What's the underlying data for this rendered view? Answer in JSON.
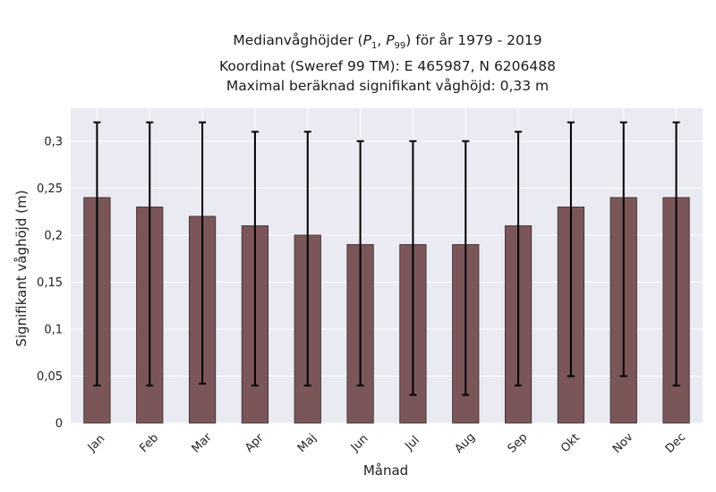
{
  "chart_data": {
    "type": "bar",
    "title_lines": [
      "Medianvåghöjder (P1, P99) för år 1979 - 2019",
      "Koordinat (Sweref 99 TM): E 465987, N 6206488",
      "Maximal beräknad signifikant våghöjd: 0,33 m"
    ],
    "xlabel": "Månad",
    "ylabel": "Signifikant våghöjd (m)",
    "categories": [
      "Jan",
      "Feb",
      "Mar",
      "Apr",
      "Maj",
      "Jun",
      "Jul",
      "Aug",
      "Sep",
      "Okt",
      "Nov",
      "Dec"
    ],
    "values": [
      0.24,
      0.23,
      0.22,
      0.21,
      0.2,
      0.19,
      0.19,
      0.19,
      0.21,
      0.23,
      0.24,
      0.24
    ],
    "p1": [
      0.04,
      0.04,
      0.042,
      0.04,
      0.04,
      0.04,
      0.03,
      0.03,
      0.04,
      0.05,
      0.05,
      0.04
    ],
    "p99": [
      0.32,
      0.32,
      0.32,
      0.31,
      0.31,
      0.3,
      0.3,
      0.3,
      0.31,
      0.32,
      0.32,
      0.32
    ],
    "ylim": [
      0,
      0.335
    ],
    "yticks": [
      0,
      0.05,
      0.1,
      0.15,
      0.2,
      0.25,
      0.3
    ],
    "ytick_labels": [
      "0",
      "0,05",
      "0,1",
      "0,15",
      "0,2",
      "0,25",
      "0,3"
    ],
    "grid": true,
    "colors": {
      "bar": "#7a5658",
      "bar_edge": "#3a2a2b",
      "errorbar": "#000000",
      "plot_bg": "#eaeaf2",
      "grid": "#ffffff"
    }
  }
}
